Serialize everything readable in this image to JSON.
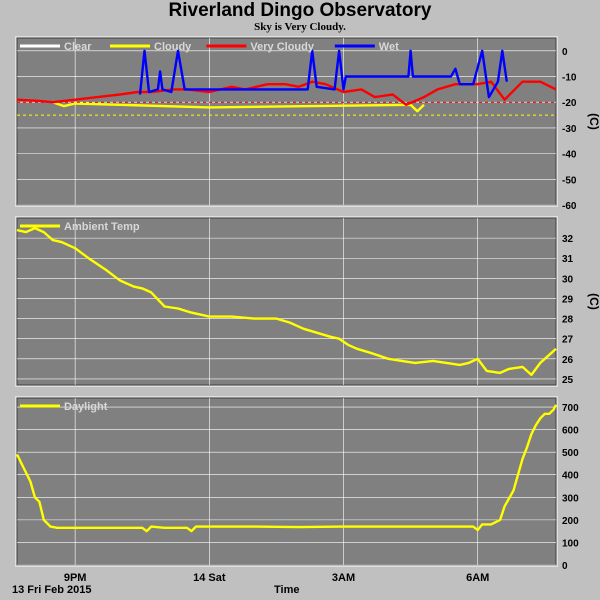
{
  "page": {
    "title": "Riverland Dingo Observatory",
    "subtitle": "Sky is Very Cloudy.",
    "date_label": "13 Fri Feb 2015",
    "time_label": "Time"
  },
  "colors": {
    "background": "#c0c0c0",
    "plot_area": "#808080",
    "grid": "#ffffff",
    "clear": "#ffffff",
    "cloudy": "#ffff00",
    "very_cloudy": "#ff0000",
    "wet": "#0000ff",
    "ambient": "#ffff00",
    "daylight": "#ffff00"
  },
  "chart_data": [
    {
      "type": "line",
      "title": "",
      "ylabel": "(C)",
      "ylim": [
        -60,
        5
      ],
      "y_ticks": [
        0,
        -10,
        -20,
        -30,
        -40,
        -50,
        -60
      ],
      "xlim": [
        19.7,
        31.75
      ],
      "x_ticks": [
        21,
        24,
        27,
        30
      ],
      "x_tick_labels": [
        "9PM",
        "14 Sat",
        "3AM",
        "6AM"
      ],
      "legend_position": "top-left",
      "series": [
        {
          "name": "Clear",
          "color": "#ffffff",
          "x": [],
          "y": []
        },
        {
          "name": "Cloudy",
          "color": "#ffff00",
          "x": [
            20.5,
            20.75,
            21.0,
            24.0,
            28.5,
            28.65,
            28.8
          ],
          "y": [
            -20,
            -21.5,
            -20.5,
            -22,
            -21,
            -23.5,
            -21
          ]
        },
        {
          "name": "Very Cloudy",
          "color": "#ff0000",
          "x": [
            19.7,
            20.2,
            20.5,
            21.0,
            21.5,
            22.0,
            22.4,
            22.7,
            23.2,
            23.5,
            24.0,
            24.5,
            24.8,
            25.3,
            25.7,
            26.0,
            26.3,
            26.6,
            27.0,
            27.4,
            27.7,
            28.1,
            28.4,
            28.8,
            29.1,
            29.5,
            30.0,
            30.3,
            30.6,
            31.0,
            31.4,
            31.75
          ],
          "y": [
            -19,
            -19.5,
            -20,
            -19,
            -18,
            -17,
            -16,
            -16,
            -15,
            -15,
            -16,
            -14,
            -15,
            -13,
            -13,
            -14,
            -12,
            -13,
            -16,
            -15,
            -18,
            -17,
            -21,
            -18,
            -15,
            -13,
            -13,
            -12,
            -19,
            -12,
            -12,
            -15
          ]
        },
        {
          "name": "Wet",
          "color": "#0000ff",
          "x": [
            22.45,
            22.55,
            22.65,
            22.85,
            22.9,
            22.95,
            23.15,
            23.3,
            23.45,
            26.2,
            26.3,
            26.4,
            26.8,
            26.9,
            27.0,
            27.05,
            28.45,
            28.5,
            28.55,
            29.4,
            29.5,
            29.6,
            29.9,
            30.1,
            30.25,
            30.45,
            30.55,
            30.65
          ],
          "y": [
            -17,
            0,
            -16,
            -15,
            -8,
            -15,
            -16,
            0,
            -15,
            -15,
            0,
            -14,
            -15,
            0,
            -15,
            -10,
            -10,
            0,
            -10,
            -10,
            -7,
            -13,
            -13,
            0,
            -18,
            -12,
            0,
            -12
          ]
        },
        {
          "name": "",
          "color": "#ffff00",
          "style": "dashed",
          "x": [
            19.7,
            31.75
          ],
          "y": [
            -25,
            -25
          ]
        },
        {
          "name": "",
          "color": "#ff0000",
          "style": "dashed",
          "x": [
            19.7,
            31.75
          ],
          "y": [
            -20,
            -20
          ]
        }
      ]
    },
    {
      "type": "line",
      "title": "",
      "ylabel": "(C)",
      "ylim": [
        24.7,
        33.0
      ],
      "y_ticks": [
        25,
        26,
        27,
        28,
        29,
        30,
        31,
        32
      ],
      "xlim": [
        19.7,
        31.75
      ],
      "x_ticks": [
        21,
        24,
        27,
        30
      ],
      "legend_position": "top-left",
      "series": [
        {
          "name": "Ambient Temp",
          "color": "#ffff00",
          "x": [
            19.7,
            19.9,
            20.1,
            20.3,
            20.5,
            20.7,
            21.0,
            21.3,
            21.7,
            22.0,
            22.3,
            22.5,
            22.7,
            23.0,
            23.3,
            23.6,
            24.0,
            24.5,
            25.0,
            25.5,
            25.8,
            26.1,
            26.4,
            26.7,
            26.9,
            27.1,
            27.3,
            27.6,
            28.0,
            28.3,
            28.6,
            29.0,
            29.3,
            29.6,
            29.8,
            30.0,
            30.2,
            30.5,
            30.7,
            31.0,
            31.2,
            31.4,
            31.6,
            31.75
          ],
          "y": [
            32.4,
            32.3,
            32.5,
            32.3,
            31.9,
            31.8,
            31.5,
            31.0,
            30.4,
            29.9,
            29.6,
            29.5,
            29.3,
            28.6,
            28.5,
            28.3,
            28.1,
            28.1,
            28.0,
            28.0,
            27.8,
            27.5,
            27.3,
            27.1,
            27.0,
            26.7,
            26.5,
            26.3,
            26.0,
            25.9,
            25.8,
            25.9,
            25.8,
            25.7,
            25.8,
            26.0,
            25.4,
            25.3,
            25.5,
            25.6,
            25.2,
            25.8,
            26.2,
            26.5
          ]
        }
      ]
    },
    {
      "type": "line",
      "title": "",
      "ylabel": "",
      "ylim": [
        0,
        740
      ],
      "y_ticks": [
        0,
        100,
        200,
        300,
        400,
        500,
        600,
        700
      ],
      "xlim": [
        19.7,
        31.75
      ],
      "x_ticks": [
        21,
        24,
        27,
        30
      ],
      "legend_position": "top-left",
      "series": [
        {
          "name": "Daylight",
          "color": "#ffff00",
          "x": [
            19.7,
            19.85,
            20.0,
            20.1,
            20.2,
            20.3,
            20.45,
            20.6,
            20.8,
            21.0,
            22.0,
            22.5,
            22.6,
            22.7,
            23.0,
            23.5,
            23.6,
            23.7,
            24.0,
            25.0,
            26.0,
            27.0,
            28.0,
            29.0,
            29.9,
            30.0,
            30.1,
            30.3,
            30.5,
            30.6,
            30.8,
            30.9,
            31.0,
            31.1,
            31.2,
            31.3,
            31.4,
            31.5,
            31.6,
            31.7,
            31.75
          ],
          "y": [
            490,
            430,
            370,
            300,
            280,
            200,
            170,
            165,
            165,
            165,
            165,
            165,
            150,
            170,
            165,
            165,
            150,
            170,
            170,
            170,
            168,
            170,
            170,
            170,
            170,
            155,
            180,
            180,
            200,
            260,
            330,
            400,
            470,
            520,
            580,
            620,
            650,
            670,
            670,
            690,
            710
          ]
        }
      ]
    }
  ]
}
